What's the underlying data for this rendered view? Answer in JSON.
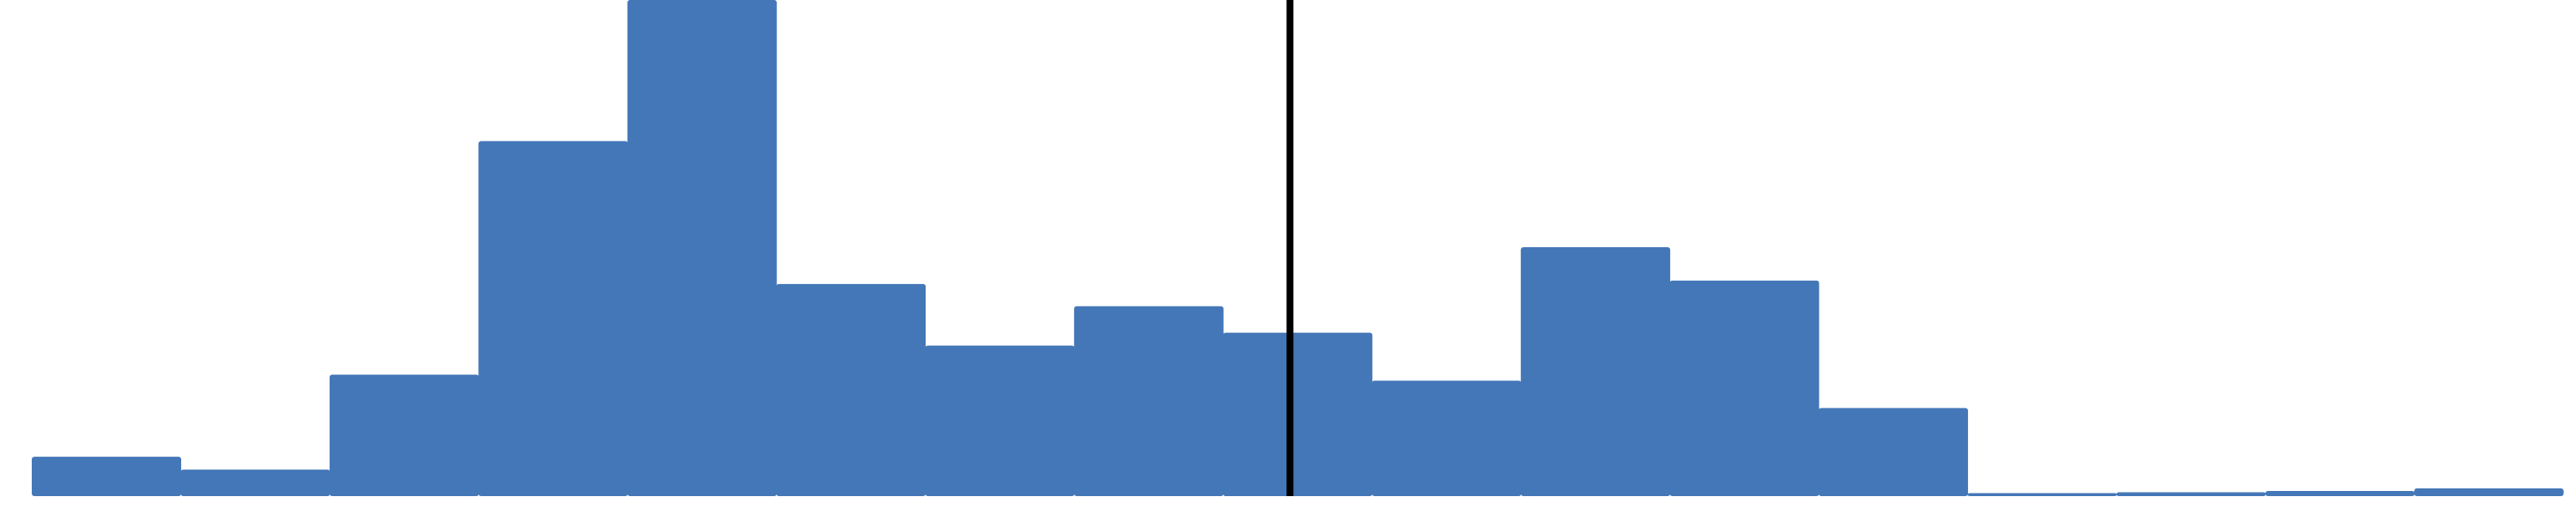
{
  "chart_data": {
    "type": "bar",
    "style": "histogram",
    "bins": 17,
    "values": [
      4.6,
      3.1,
      14.2,
      41.5,
      58.0,
      24.8,
      17.6,
      22.2,
      19.1,
      13.5,
      29.1,
      25.2,
      10.3,
      0.35,
      0.45,
      0.6,
      0.9
    ],
    "ylim": [
      0,
      58
    ],
    "reference_line": {
      "bin_position": 8.45
    },
    "grid": false,
    "legend": "none",
    "colors": {
      "bar": "#4477B8",
      "reference_line": "#000000",
      "background": "#FFFFFF"
    }
  }
}
